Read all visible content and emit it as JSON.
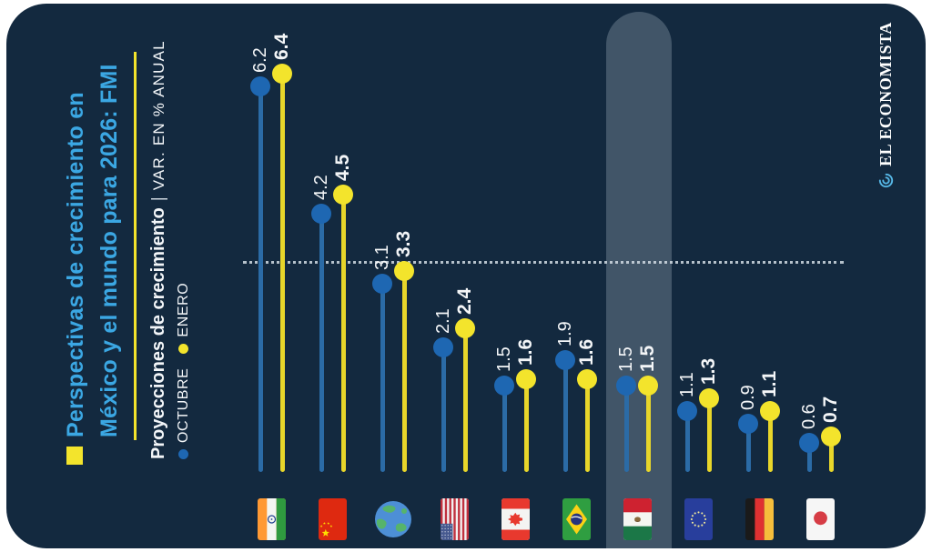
{
  "header": {
    "title_line1": "Perspectivas de crecimiento en",
    "title_line2": "México y el mundo para 2026: FMI",
    "subtitle_bold": "Proyecciones de crecimiento",
    "subtitle_sep": "|",
    "subtitle_rest": "VAR. EN % ANUAL"
  },
  "legend": {
    "octubre": {
      "label": "OCTUBRE",
      "color": "#1E67B2"
    },
    "enero": {
      "label": "ENERO",
      "color": "#F3E42C"
    }
  },
  "brand": {
    "name": "EL ECONOMISTA",
    "logo_color": "#56B7E6"
  },
  "colors": {
    "card_background": "#13293F",
    "title_blue": "#3BA7E3",
    "accent_yellow": "#F3E42C",
    "octubre_dot": "#1E67B2",
    "octubre_stem": "#2B6BA6",
    "enero_dot": "#F3E42C",
    "enero_stem": "#E8D62A",
    "value_text": "#F4F6F8",
    "highlight_band": "rgba(196,212,226,0.26)"
  },
  "chart_data": {
    "type": "lollipop-pairs",
    "title": "Perspectivas de crecimiento en México y el mundo para 2026: FMI",
    "ylabel": "VAR. EN % ANUAL",
    "categories": [
      "India",
      "China",
      "Mundo",
      "Estados Unidos",
      "Canadá",
      "Brasil",
      "México",
      "Unión Europea",
      "Alemania",
      "Japón"
    ],
    "flags": [
      "india",
      "china",
      "world",
      "usa",
      "canada",
      "brazil",
      "mexico",
      "eu",
      "germany",
      "japan"
    ],
    "series": [
      {
        "name": "OCTUBRE",
        "color": "#1E67B2",
        "values": [
          6.2,
          4.2,
          3.1,
          2.1,
          1.5,
          1.9,
          1.5,
          1.1,
          0.9,
          0.6
        ]
      },
      {
        "name": "ENERO",
        "color": "#F3E42C",
        "values": [
          6.4,
          4.5,
          3.3,
          2.4,
          1.6,
          1.6,
          1.5,
          1.3,
          1.1,
          0.7
        ]
      }
    ],
    "highlight_category": "México",
    "ylim": [
      0,
      7
    ],
    "reference_line_value": 3.5,
    "legend_position": "left-rotated"
  }
}
